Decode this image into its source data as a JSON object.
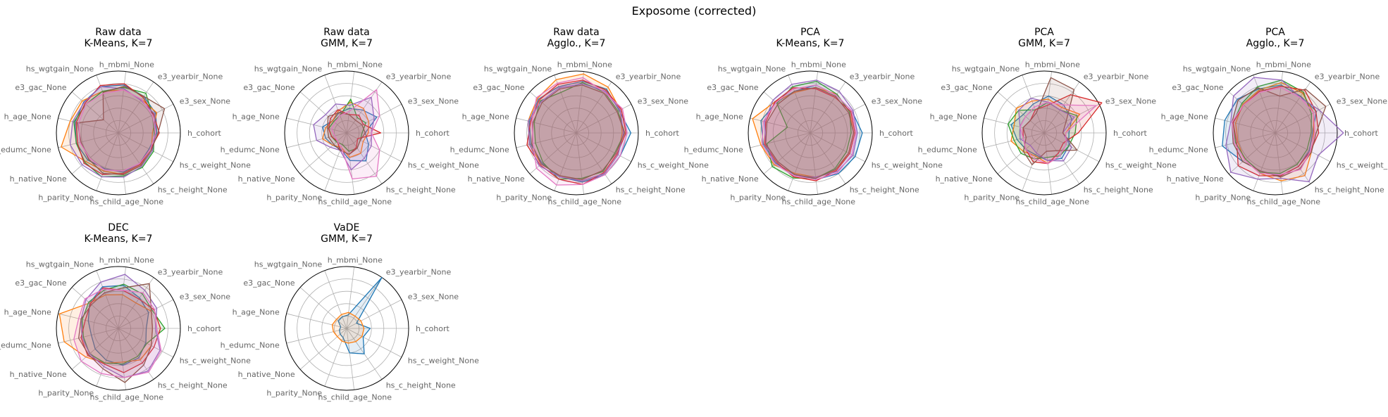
{
  "figure": {
    "title": "Exposome (corrected)",
    "colors": [
      "#1f77b4",
      "#ff7f0e",
      "#2ca02c",
      "#d62728",
      "#9467bd",
      "#8c564b",
      "#e377c2"
    ],
    "axes": [
      "h_cohort",
      "e3_sex_None",
      "e3_yearbir_None",
      "h_mbmi_None",
      "hs_wgtgain_None",
      "e3_gac_None",
      "h_age_None",
      "h_edumc_None",
      "h_native_None",
      "h_parity_None",
      "hs_child_age_None",
      "hs_c_height_None",
      "hs_c_weight_None"
    ]
  },
  "chart_data": [
    {
      "type": "radar",
      "title": [
        "Raw data",
        "K-Means, K=7"
      ],
      "rlim": [
        0,
        1
      ],
      "grid": true,
      "series": [
        {
          "values": [
            0.62,
            0.68,
            0.72,
            0.78,
            0.8,
            0.75,
            0.72,
            0.7,
            0.66,
            0.62,
            0.64,
            0.6,
            0.56
          ]
        },
        {
          "values": [
            0.55,
            0.7,
            0.66,
            0.7,
            0.72,
            0.78,
            0.8,
            0.95,
            0.7,
            0.66,
            0.68,
            0.64,
            0.6
          ]
        },
        {
          "values": [
            0.58,
            0.62,
            0.78,
            0.74,
            0.72,
            0.7,
            0.74,
            0.7,
            0.72,
            0.76,
            0.7,
            0.68,
            0.64
          ]
        },
        {
          "values": [
            0.66,
            0.64,
            0.7,
            0.8,
            0.82,
            0.72,
            0.7,
            0.68,
            0.74,
            0.72,
            0.66,
            0.62,
            0.58
          ]
        },
        {
          "values": [
            0.6,
            0.66,
            0.64,
            0.72,
            0.8,
            0.74,
            0.76,
            0.8,
            0.78,
            0.76,
            0.72,
            0.66,
            0.62
          ]
        },
        {
          "values": [
            0.64,
            0.84,
            0.72,
            0.76,
            0.7,
            0.32,
            0.68,
            0.62,
            0.64,
            0.7,
            0.68,
            0.64,
            0.6
          ]
        },
        {
          "values": [
            0.6,
            0.62,
            0.66,
            0.7,
            0.68,
            0.7,
            0.66,
            0.64,
            0.62,
            0.64,
            0.62,
            0.6,
            0.58
          ]
        }
      ]
    },
    {
      "type": "radar",
      "title": [
        "Raw data",
        "GMM, K=7"
      ],
      "rlim": [
        0,
        1
      ],
      "grid": true,
      "series": [
        {
          "values": [
            0.3,
            0.55,
            0.45,
            0.4,
            0.35,
            0.3,
            0.4,
            0.35,
            0.3,
            0.28,
            0.45,
            0.55,
            0.4
          ]
        },
        {
          "values": [
            0.35,
            0.4,
            0.48,
            0.5,
            0.38,
            0.3,
            0.35,
            0.4,
            0.3,
            0.25,
            0.4,
            0.4,
            0.3
          ]
        },
        {
          "values": [
            0.25,
            0.35,
            0.3,
            0.55,
            0.3,
            0.28,
            0.3,
            0.25,
            0.22,
            0.2,
            0.3,
            0.3,
            0.25
          ]
        },
        {
          "values": [
            0.55,
            0.3,
            0.35,
            0.3,
            0.4,
            0.35,
            0.3,
            0.25,
            0.2,
            0.3,
            0.35,
            0.28,
            0.2
          ]
        },
        {
          "values": [
            0.4,
            0.5,
            0.7,
            0.45,
            0.5,
            0.45,
            0.55,
            0.5,
            0.35,
            0.3,
            0.6,
            0.5,
            0.45
          ]
        },
        {
          "values": [
            0.3,
            0.28,
            0.25,
            0.3,
            0.35,
            0.4,
            0.32,
            0.3,
            0.28,
            0.3,
            0.35,
            0.3,
            0.25
          ]
        },
        {
          "values": [
            0.4,
            0.6,
            0.85,
            0.35,
            0.3,
            0.25,
            0.25,
            0.2,
            0.2,
            0.25,
            0.75,
            0.85,
            0.6
          ]
        }
      ]
    },
    {
      "type": "radar",
      "title": [
        "Raw data",
        "Agglo., K=7"
      ],
      "rlim": [
        0,
        1
      ],
      "grid": true,
      "series": [
        {
          "values": [
            0.88,
            0.78,
            0.86,
            0.84,
            0.8,
            0.82,
            0.78,
            0.76,
            0.74,
            0.76,
            0.8,
            0.82,
            0.8
          ]
        },
        {
          "values": [
            0.74,
            0.8,
            0.9,
            0.96,
            0.92,
            0.84,
            0.8,
            0.78,
            0.76,
            0.74,
            0.78,
            0.8,
            0.76
          ]
        },
        {
          "values": [
            0.78,
            0.76,
            0.8,
            0.82,
            0.7,
            0.78,
            0.7,
            0.68,
            0.72,
            0.8,
            0.74,
            0.76,
            0.7
          ]
        },
        {
          "values": [
            0.8,
            0.82,
            0.84,
            0.86,
            0.84,
            0.8,
            0.76,
            0.82,
            0.78,
            0.8,
            0.84,
            0.78,
            0.74
          ]
        },
        {
          "values": [
            0.76,
            0.8,
            0.82,
            0.8,
            0.78,
            0.76,
            0.8,
            0.78,
            0.8,
            0.76,
            0.78,
            0.8,
            0.76
          ]
        },
        {
          "values": [
            0.78,
            0.74,
            0.78,
            0.78,
            0.76,
            0.74,
            0.72,
            0.74,
            0.76,
            0.74,
            0.76,
            0.74,
            0.72
          ]
        },
        {
          "values": [
            0.82,
            0.84,
            0.8,
            0.9,
            0.86,
            0.86,
            0.74,
            0.72,
            0.86,
            0.9,
            0.84,
            0.82,
            0.8
          ]
        }
      ]
    },
    {
      "type": "radar",
      "title": [
        "PCA",
        "K-Means, K=7"
      ],
      "rlim": [
        0,
        1
      ],
      "grid": true,
      "series": [
        {
          "values": [
            0.84,
            0.76,
            0.74,
            0.78,
            0.72,
            0.74,
            0.82,
            0.78,
            0.74,
            0.72,
            0.76,
            0.8,
            0.82
          ]
        },
        {
          "values": [
            0.7,
            0.72,
            0.76,
            0.74,
            0.7,
            0.76,
            0.96,
            0.82,
            0.78,
            0.7,
            0.72,
            0.74,
            0.7
          ]
        },
        {
          "values": [
            0.66,
            0.72,
            0.76,
            0.84,
            0.8,
            0.72,
            0.38,
            0.72,
            0.82,
            0.78,
            0.74,
            0.7,
            0.66
          ]
        },
        {
          "values": [
            0.72,
            0.74,
            0.7,
            0.72,
            0.78,
            0.76,
            0.74,
            0.76,
            0.72,
            0.76,
            0.78,
            0.74,
            0.72
          ]
        },
        {
          "values": [
            0.76,
            0.78,
            0.82,
            0.86,
            0.84,
            0.8,
            0.76,
            0.74,
            0.76,
            0.74,
            0.72,
            0.76,
            0.78
          ]
        },
        {
          "values": [
            0.7,
            0.7,
            0.72,
            0.74,
            0.72,
            0.7,
            0.72,
            0.74,
            0.7,
            0.72,
            0.74,
            0.72,
            0.7
          ]
        },
        {
          "values": [
            0.74,
            0.76,
            0.74,
            0.78,
            0.76,
            0.74,
            0.78,
            0.8,
            0.76,
            0.74,
            0.76,
            0.78,
            0.76
          ]
        }
      ]
    },
    {
      "type": "radar",
      "title": [
        "PCA",
        "GMM, K=7"
      ],
      "rlim": [
        0,
        1
      ],
      "grid": true,
      "series": [
        {
          "values": [
            0.4,
            0.5,
            0.55,
            0.6,
            0.5,
            0.45,
            0.55,
            0.45,
            0.4,
            0.38,
            0.45,
            0.5,
            0.45
          ]
        },
        {
          "values": [
            0.35,
            0.65,
            0.5,
            0.55,
            0.55,
            0.6,
            0.5,
            0.55,
            0.45,
            0.4,
            0.5,
            0.45,
            0.4
          ]
        },
        {
          "values": [
            0.5,
            0.6,
            0.45,
            0.5,
            0.4,
            0.55,
            0.6,
            0.5,
            0.5,
            0.45,
            0.4,
            0.45,
            0.45
          ]
        },
        {
          "values": [
            0.55,
            1.05,
            0.75,
            0.45,
            0.4,
            0.3,
            0.35,
            0.35,
            0.4,
            0.5,
            0.5,
            0.4,
            0.35
          ]
        },
        {
          "values": [
            0.3,
            0.55,
            0.45,
            0.5,
            0.6,
            0.55,
            0.4,
            0.4,
            0.3,
            0.35,
            0.45,
            0.55,
            0.5
          ]
        },
        {
          "values": [
            0.3,
            0.4,
            0.85,
            0.9,
            0.35,
            0.3,
            0.35,
            0.3,
            0.45,
            0.55,
            0.3,
            0.35,
            0.6
          ]
        },
        {
          "values": [
            0.35,
            0.95,
            0.55,
            0.5,
            0.45,
            0.4,
            0.4,
            0.35,
            0.4,
            0.45,
            0.5,
            0.45,
            0.4
          ]
        }
      ]
    },
    {
      "type": "radar",
      "title": [
        "PCA",
        "Agglo., K=7"
      ],
      "rlim": [
        0,
        1
      ],
      "grid": true,
      "series": [
        {
          "values": [
            0.6,
            0.75,
            0.72,
            0.78,
            0.76,
            0.82,
            0.84,
            0.88,
            0.7,
            0.66,
            0.7,
            0.66,
            0.62
          ]
        },
        {
          "values": [
            0.62,
            0.7,
            0.78,
            0.82,
            0.74,
            0.7,
            0.66,
            0.62,
            0.66,
            0.7,
            0.78,
            0.84,
            0.66
          ]
        },
        {
          "values": [
            0.58,
            0.66,
            0.8,
            0.86,
            0.8,
            0.72,
            0.7,
            0.66,
            0.64,
            0.68,
            0.66,
            0.62,
            0.58
          ]
        },
        {
          "values": [
            0.7,
            0.74,
            0.84,
            0.76,
            0.72,
            0.68,
            0.7,
            0.64,
            0.8,
            0.74,
            0.7,
            0.66,
            0.64
          ]
        },
        {
          "values": [
            1.1,
            0.8,
            0.7,
            0.86,
            0.96,
            0.9,
            0.74,
            0.82,
            0.96,
            0.8,
            0.74,
            0.96,
            0.78
          ]
        },
        {
          "values": [
            0.66,
            0.92,
            0.86,
            0.6,
            0.78,
            0.8,
            0.72,
            0.7,
            0.7,
            0.66,
            0.72,
            0.7,
            0.66
          ]
        },
        {
          "values": [
            0.64,
            0.7,
            0.7,
            0.74,
            0.7,
            0.68,
            0.72,
            0.68,
            0.66,
            0.7,
            0.68,
            0.72,
            0.64
          ]
        }
      ]
    },
    {
      "type": "radar",
      "title": [
        "DEC",
        "K-Means, K=7"
      ],
      "rlim": [
        0,
        1
      ],
      "grid": true,
      "series": [
        {
          "values": [
            0.45,
            0.55,
            0.6,
            0.7,
            0.72,
            0.62,
            0.5,
            0.45,
            0.5,
            0.55,
            0.6,
            0.58,
            0.5
          ]
        },
        {
          "values": [
            0.55,
            0.6,
            0.5,
            0.55,
            0.58,
            0.62,
            0.98,
            0.9,
            0.7,
            0.6,
            0.55,
            0.62,
            0.6
          ]
        },
        {
          "values": [
            0.75,
            0.62,
            0.68,
            0.72,
            0.66,
            0.64,
            0.6,
            0.58,
            0.62,
            0.6,
            0.58,
            0.55,
            0.52
          ]
        },
        {
          "values": [
            0.68,
            0.65,
            0.58,
            0.62,
            0.7,
            0.6,
            0.55,
            0.62,
            0.66,
            0.62,
            0.72,
            0.68,
            0.65
          ]
        },
        {
          "values": [
            0.6,
            0.7,
            0.75,
            0.88,
            0.8,
            0.7,
            0.62,
            0.6,
            0.62,
            0.66,
            0.8,
            0.84,
            0.76
          ]
        },
        {
          "values": [
            0.55,
            0.6,
            0.88,
            0.66,
            0.62,
            0.58,
            0.62,
            0.66,
            0.64,
            0.7,
            0.88,
            0.72,
            0.6
          ]
        },
        {
          "values": [
            0.62,
            0.66,
            0.7,
            0.62,
            0.68,
            0.72,
            0.66,
            0.74,
            0.8,
            0.78,
            0.8,
            0.86,
            0.78
          ]
        }
      ]
    },
    {
      "type": "radar",
      "title": [
        "VaDE",
        "GMM, K=7"
      ],
      "rlim": [
        0,
        1
      ],
      "grid": true,
      "series": [
        {
          "values": [
            0.38,
            0.18,
            1.0,
            0.22,
            0.2,
            0.18,
            0.1,
            0.12,
            0.14,
            0.16,
            0.4,
            0.5,
            0.3
          ]
        },
        {
          "values": [
            0.28,
            0.26,
            0.24,
            0.26,
            0.24,
            0.22,
            0.24,
            0.22,
            0.2,
            0.22,
            0.24,
            0.26,
            0.28
          ]
        }
      ]
    }
  ]
}
